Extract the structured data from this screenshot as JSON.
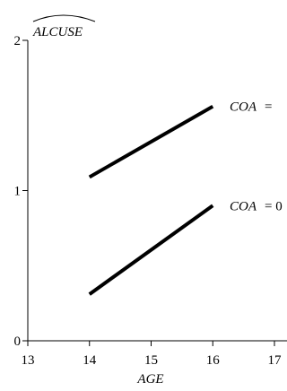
{
  "chart_data": {
    "type": "line",
    "ylabel": "ALCUSE",
    "xlabel": "AGE",
    "xlim": [
      13,
      17
    ],
    "ylim": [
      0,
      2
    ],
    "x_ticks": [
      "13",
      "14",
      "15",
      "16",
      "17"
    ],
    "y_ticks": [
      "0",
      "1",
      "2"
    ],
    "grid": false,
    "series": [
      {
        "label_var": "COA",
        "label_eq": "=",
        "x": [
          14,
          16
        ],
        "y": [
          1.09,
          1.56
        ]
      },
      {
        "label_var": "COA",
        "label_eq": "= 0",
        "x": [
          14,
          16
        ],
        "y": [
          0.31,
          0.9
        ]
      }
    ]
  }
}
